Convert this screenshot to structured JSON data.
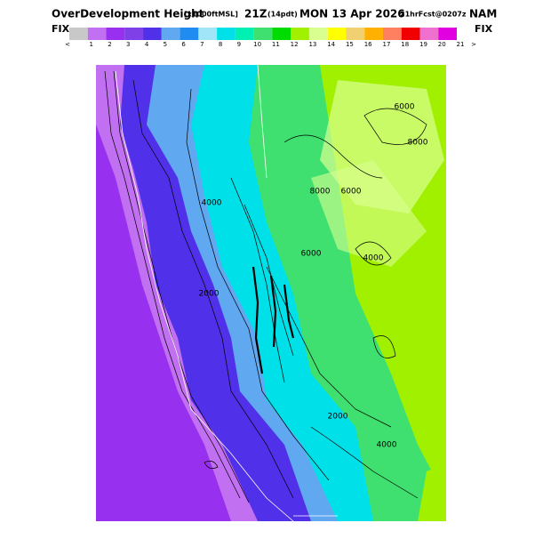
{
  "header": {
    "title_main": "OverDevelopment Height",
    "title_units": "[x1000ftMSL]",
    "title_time": "21Z",
    "title_local": "(14pdt)",
    "title_date": "MON 13 Apr 2026",
    "title_fcst": "21hrFcst@0207z",
    "title_model": "NAM",
    "fix_left": "FIX",
    "fix_right": "FIX",
    "below": "<",
    "above": ">"
  },
  "colorbar": {
    "colors": [
      "#c8c8c8",
      "#c070f0",
      "#9830f0",
      "#8040e8",
      "#5030e8",
      "#60a8f0",
      "#1e8cf0",
      "#a0e6f8",
      "#00e0e8",
      "#00f0b4",
      "#40e070",
      "#00dc00",
      "#a0f000",
      "#d8ff90",
      "#ffff00",
      "#f0d070",
      "#ffb000",
      "#ff8060",
      "#f00000",
      "#f070d0",
      "#e000e0"
    ],
    "labels": [
      1,
      2,
      3,
      4,
      5,
      6,
      7,
      8,
      9,
      10,
      11,
      12,
      13,
      14,
      15,
      16,
      17,
      18,
      19,
      20,
      21
    ]
  },
  "map": {
    "contour_labels": [
      "6000",
      "8000",
      "8000",
      "6000",
      "6000",
      "4000",
      "4000",
      "2000",
      "2000",
      "4000"
    ]
  }
}
